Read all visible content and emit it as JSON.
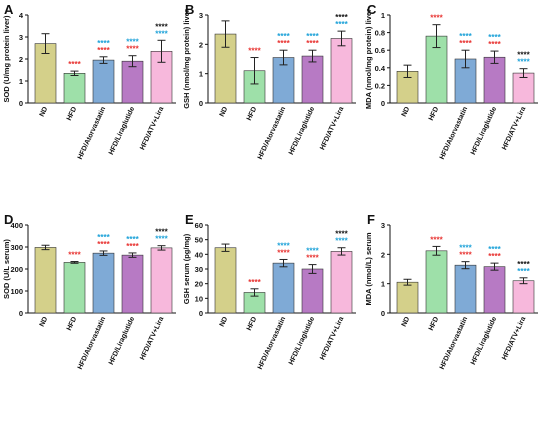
{
  "colors": {
    "bars": [
      "#d4d08a",
      "#9ee0a9",
      "#7faad6",
      "#b77ac4",
      "#f7b8dc"
    ],
    "bar_stroke": "#333333",
    "star_red": "#e8312f",
    "star_blue": "#1ba1d8",
    "star_black": "#111111"
  },
  "chart_data": [
    {
      "panel_letter": "A",
      "type": "bar",
      "categories": [
        "ND",
        "HFD",
        "HFD/Atorvastatin",
        "HFD/Liraglutide",
        "HFD/ATV+Lira"
      ],
      "values": [
        2.7,
        1.35,
        1.95,
        1.9,
        2.35
      ],
      "errors": [
        0.45,
        0.1,
        0.15,
        0.25,
        0.5
      ],
      "ylabel": "SOD (U/mg protein liver)",
      "ylim": [
        0,
        4
      ],
      "yticks": [
        0,
        1,
        2,
        3,
        4
      ],
      "stars": [
        [],
        [
          "red"
        ],
        [
          "blue",
          "red"
        ],
        [
          "blue",
          "red"
        ],
        [
          "black",
          "blue"
        ]
      ]
    },
    {
      "panel_letter": "B",
      "type": "bar",
      "categories": [
        "ND",
        "HFD",
        "HFD/Atorvastatin",
        "HFD/Liraglutide",
        "HFD/ATV+Lira"
      ],
      "values": [
        2.35,
        1.1,
        1.55,
        1.6,
        2.2
      ],
      "errors": [
        0.45,
        0.45,
        0.25,
        0.2,
        0.25
      ],
      "ylabel": "GSH (nmol/mg protein) liver",
      "ylim": [
        0,
        3
      ],
      "yticks": [
        0,
        1,
        2,
        3
      ],
      "stars": [
        [],
        [
          "red"
        ],
        [
          "blue",
          "red"
        ],
        [
          "blue",
          "red"
        ],
        [
          "black",
          "blue"
        ]
      ]
    },
    {
      "panel_letter": "C",
      "type": "bar",
      "categories": [
        "ND",
        "HFD",
        "HFD/Atorvastatin",
        "HFD/Liraglutide",
        "HFD/ATV+Lira"
      ],
      "values": [
        0.36,
        0.76,
        0.5,
        0.52,
        0.34
      ],
      "errors": [
        0.07,
        0.13,
        0.1,
        0.07,
        0.05
      ],
      "ylabel": "MDA (nmol/mg protein) liver",
      "ylim": [
        0,
        1.0
      ],
      "yticks": [
        0,
        0.2,
        0.4,
        0.6,
        0.8,
        1.0
      ],
      "stars": [
        [],
        [
          "red"
        ],
        [
          "blue",
          "red"
        ],
        [
          "blue",
          "red"
        ],
        [
          "black",
          "blue"
        ]
      ]
    },
    {
      "panel_letter": "D",
      "type": "bar",
      "categories": [
        "ND",
        "HFD",
        "HFD/Atorvastatin",
        "HFD/Liraglutide",
        "HFD/ATV+Lira"
      ],
      "values": [
        298,
        230,
        272,
        263,
        296
      ],
      "errors": [
        10,
        4,
        10,
        10,
        10
      ],
      "ylabel": "SOD (U/L serum)",
      "ylim": [
        0,
        400
      ],
      "yticks": [
        0,
        100,
        200,
        300,
        400
      ],
      "stars": [
        [],
        [
          "red"
        ],
        [
          "blue",
          "red"
        ],
        [
          "blue",
          "red"
        ],
        [
          "black",
          "blue"
        ]
      ]
    },
    {
      "panel_letter": "E",
      "type": "bar",
      "categories": [
        "ND",
        "HFD",
        "HFD/Atorvastatin",
        "HFD/Liraglutide",
        "HFD/ATV+Lira"
      ],
      "values": [
        44.5,
        14,
        34,
        30,
        42
      ],
      "errors": [
        2.5,
        2.5,
        2.5,
        3,
        2.5
      ],
      "ylabel": "GSH serum (pg/mg)",
      "ylim": [
        0,
        60
      ],
      "yticks": [
        0,
        10,
        20,
        30,
        40,
        50,
        60
      ],
      "stars": [
        [],
        [
          "red"
        ],
        [
          "blue",
          "red"
        ],
        [
          "blue",
          "red"
        ],
        [
          "black",
          "blue"
        ]
      ]
    },
    {
      "panel_letter": "F",
      "type": "bar",
      "categories": [
        "ND",
        "HFD",
        "HFD/Atorvastatin",
        "HFD/Liraglutide",
        "HFD/ATV+Lira"
      ],
      "values": [
        1.05,
        2.12,
        1.63,
        1.58,
        1.1
      ],
      "errors": [
        0.1,
        0.15,
        0.12,
        0.12,
        0.1
      ],
      "ylabel": "MDA (nmol/L) serum",
      "ylim": [
        0,
        3
      ],
      "yticks": [
        0,
        1,
        2,
        3
      ],
      "stars": [
        [],
        [
          "red"
        ],
        [
          "blue",
          "red"
        ],
        [
          "blue",
          "red"
        ],
        [
          "black",
          "blue"
        ]
      ]
    }
  ]
}
